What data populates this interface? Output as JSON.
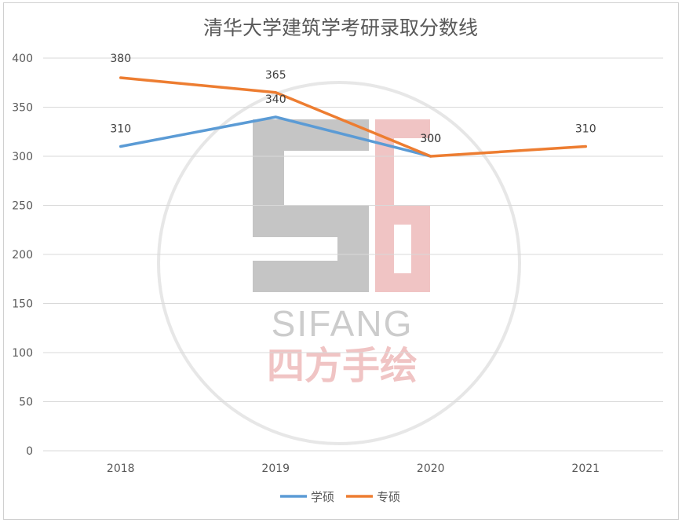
{
  "chart_data": {
    "type": "line",
    "title": "清华大学建筑学考研录取分数线",
    "categories": [
      "2018",
      "2019",
      "2020",
      "2021"
    ],
    "series": [
      {
        "name": "学硕",
        "color": "#5b9bd5",
        "values": [
          310,
          340,
          300,
          null
        ]
      },
      {
        "name": "专硕",
        "color": "#ed7d31",
        "values": [
          380,
          365,
          300,
          310
        ]
      }
    ],
    "ylim": [
      0,
      400
    ],
    "yticks": [
      0,
      50,
      100,
      150,
      200,
      250,
      300,
      350,
      400
    ],
    "grid": true,
    "legend": "bottom",
    "data_labels": true
  },
  "watermark": {
    "text_en": "SIFANG",
    "text_cn": "四方手绘"
  }
}
